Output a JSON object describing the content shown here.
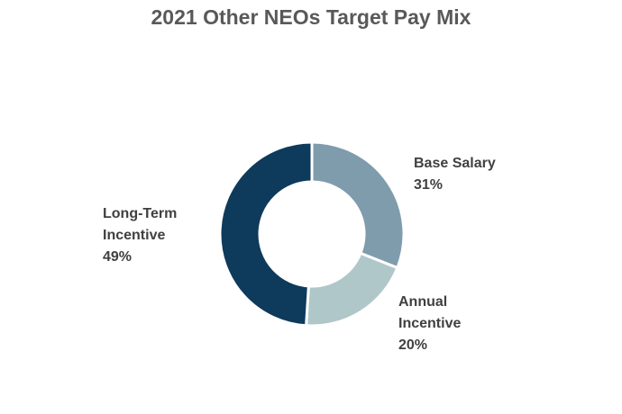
{
  "chart_data": {
    "type": "donut",
    "title": "2021 Other NEOs Target Pay Mix",
    "categories": [
      "Base Salary",
      "Annual Incentive",
      "Long-Term Incentive"
    ],
    "values": [
      31,
      20,
      49
    ],
    "value_labels": [
      "31%",
      "20%",
      "49%"
    ],
    "colors": [
      "#7f9cad",
      "#b0c7c9",
      "#0e3a5c"
    ]
  }
}
